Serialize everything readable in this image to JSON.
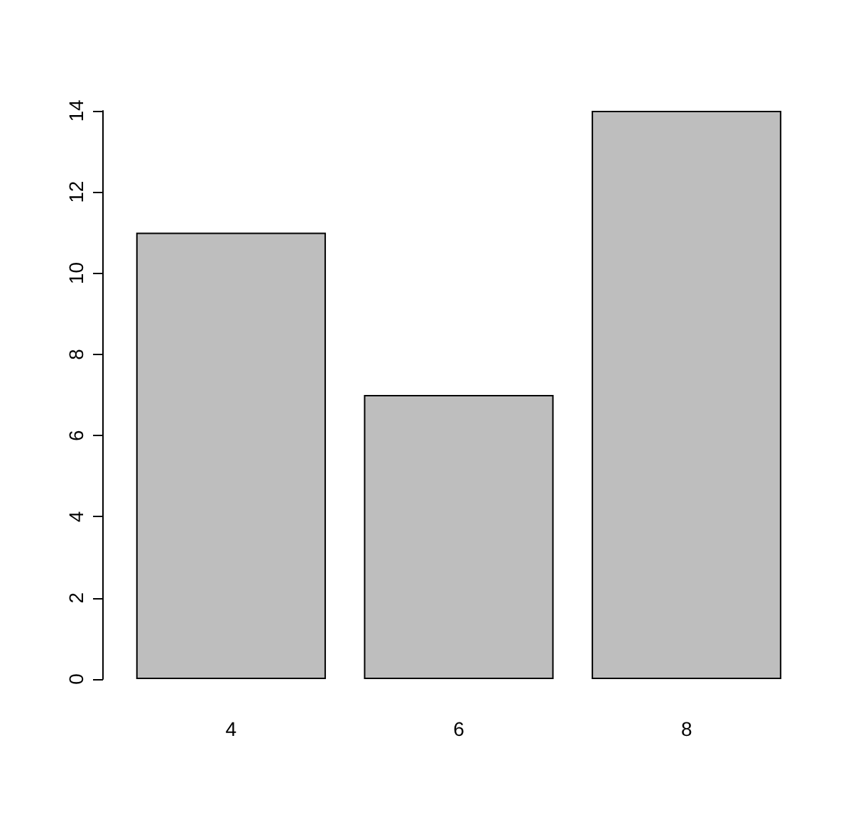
{
  "chart_data": {
    "type": "bar",
    "categories": [
      "4",
      "6",
      "8"
    ],
    "values": [
      11,
      7,
      14
    ],
    "color": "#bebebe",
    "ylim": [
      0,
      14
    ],
    "yticks": [
      0,
      2,
      4,
      6,
      8,
      10,
      12,
      14
    ],
    "grid": false
  }
}
